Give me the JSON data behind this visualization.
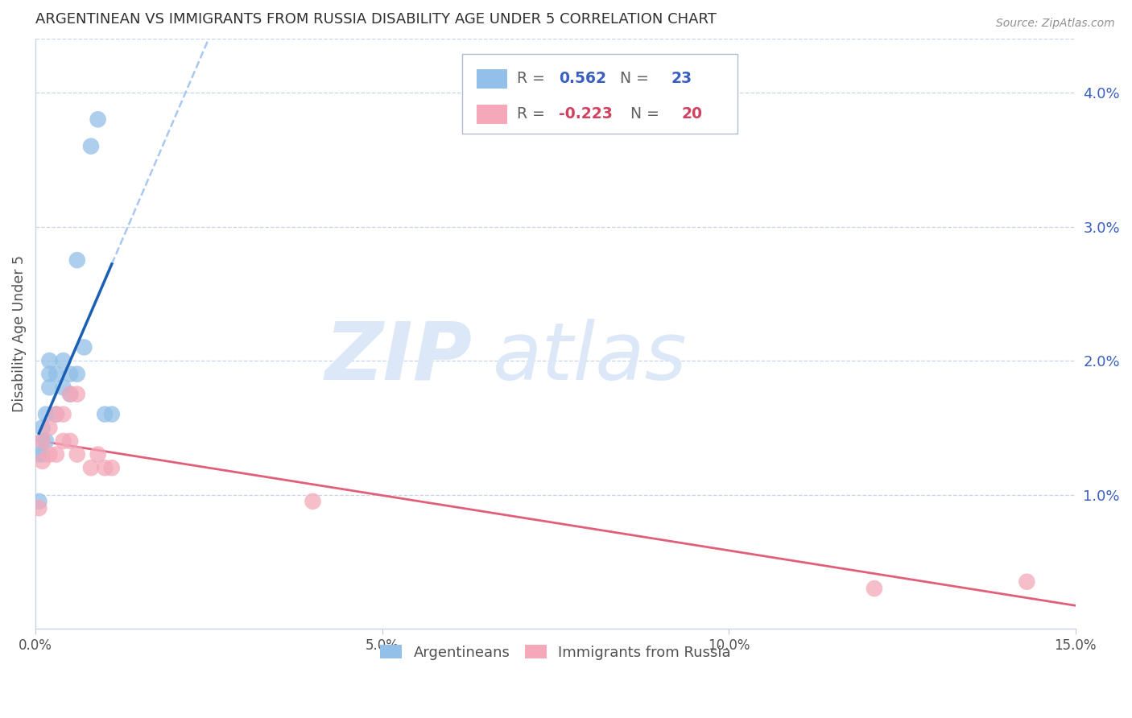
{
  "title": "ARGENTINEAN VS IMMIGRANTS FROM RUSSIA DISABILITY AGE UNDER 5 CORRELATION CHART",
  "source": "Source: ZipAtlas.com",
  "ylabel": "Disability Age Under 5",
  "xlim": [
    0,
    0.15
  ],
  "ylim": [
    0,
    0.044
  ],
  "xticks": [
    0.0,
    0.05,
    0.1,
    0.15
  ],
  "xtick_labels": [
    "0.0%",
    "5.0%",
    "10.0%",
    "15.0%"
  ],
  "yticks_right": [
    0.01,
    0.02,
    0.03,
    0.04
  ],
  "ytick_labels_right": [
    "1.0%",
    "2.0%",
    "3.0%",
    "4.0%"
  ],
  "argentinean_x": [
    0.0005,
    0.0005,
    0.001,
    0.001,
    0.001,
    0.0015,
    0.0015,
    0.002,
    0.002,
    0.002,
    0.003,
    0.003,
    0.004,
    0.004,
    0.005,
    0.005,
    0.006,
    0.006,
    0.007,
    0.008,
    0.009,
    0.01,
    0.011
  ],
  "argentinean_y": [
    0.0095,
    0.013,
    0.013,
    0.014,
    0.015,
    0.014,
    0.016,
    0.018,
    0.019,
    0.02,
    0.016,
    0.019,
    0.018,
    0.02,
    0.019,
    0.0175,
    0.0275,
    0.019,
    0.021,
    0.036,
    0.038,
    0.016,
    0.016
  ],
  "russia_x": [
    0.0005,
    0.001,
    0.001,
    0.002,
    0.002,
    0.003,
    0.003,
    0.004,
    0.004,
    0.005,
    0.005,
    0.006,
    0.006,
    0.008,
    0.009,
    0.01,
    0.011,
    0.04,
    0.121,
    0.143
  ],
  "russia_y": [
    0.009,
    0.0125,
    0.014,
    0.013,
    0.015,
    0.013,
    0.016,
    0.014,
    0.016,
    0.014,
    0.0175,
    0.013,
    0.0175,
    0.012,
    0.013,
    0.012,
    0.012,
    0.0095,
    0.003,
    0.0035
  ],
  "blue_color": "#92c0e8",
  "pink_color": "#f4a8b8",
  "blue_line_color": "#1a5fb4",
  "pink_line_color": "#e0607a",
  "blue_dash_color": "#a8c8f0",
  "background_color": "#ffffff",
  "grid_color": "#c8d4e8",
  "title_color": "#303030",
  "axis_label_color": "#505050",
  "right_tick_color": "#3a5fbf",
  "watermark_color": "#dce8f8",
  "source_color": "#909090"
}
